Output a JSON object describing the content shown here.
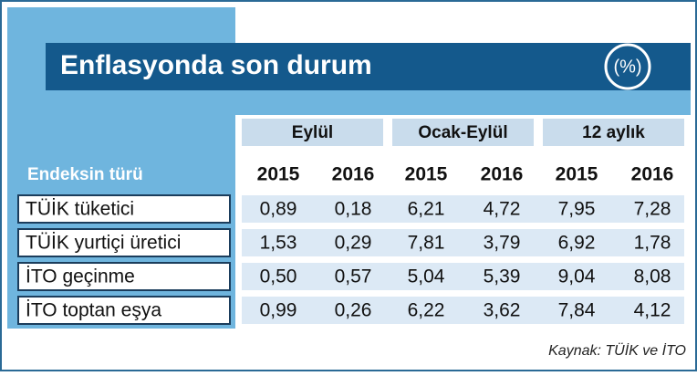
{
  "header": {
    "title": "Enflasyonda son durum",
    "badge": "(%)"
  },
  "table": {
    "row_header": "Endeksin türü",
    "groups": [
      "Eylül",
      "Ocak-Eylül",
      "12 aylık"
    ],
    "years": [
      "2015",
      "2016",
      "2015",
      "2016",
      "2015",
      "2016"
    ],
    "rows": [
      {
        "label": "TÜİK tüketici",
        "values": [
          "0,89",
          "0,18",
          "6,21",
          "4,72",
          "7,95",
          "7,28"
        ]
      },
      {
        "label": "TÜİK yurtiçi üretici",
        "values": [
          "1,53",
          "0,29",
          "7,81",
          "3,79",
          "6,92",
          "1,78"
        ]
      },
      {
        "label": "İTO geçinme",
        "values": [
          "0,50",
          "0,57",
          "5,04",
          "5,39",
          "9,04",
          "8,08"
        ]
      },
      {
        "label": "İTO toptan eşya",
        "values": [
          "0,99",
          "0,26",
          "6,22",
          "3,62",
          "7,84",
          "4,12"
        ]
      }
    ]
  },
  "source": "Kaynak: TÜİK ve İTO"
}
